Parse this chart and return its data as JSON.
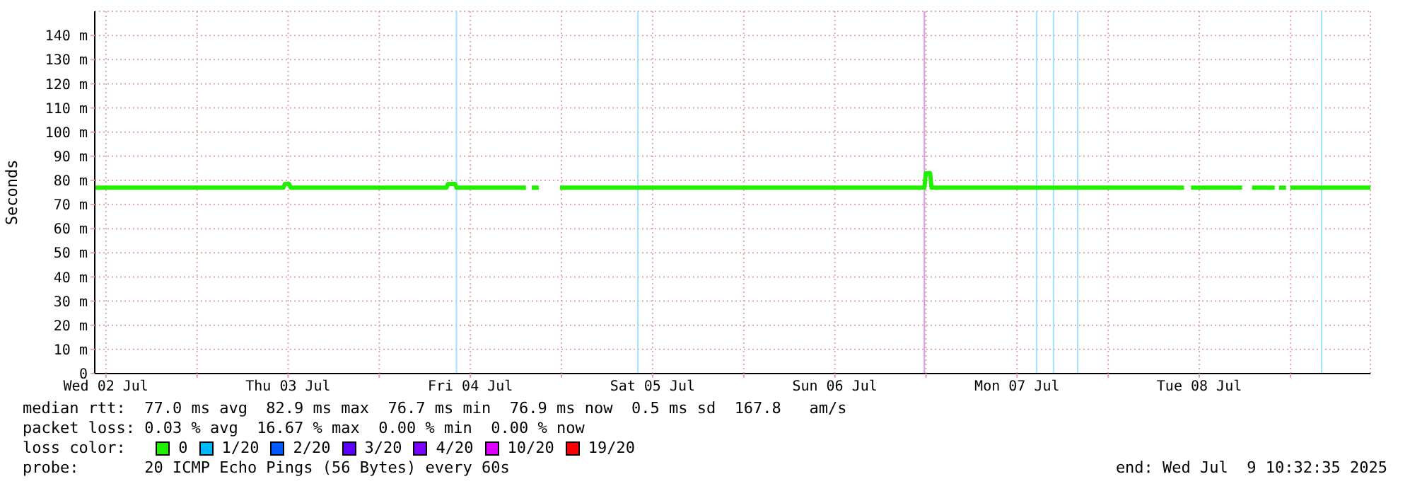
{
  "chart_data": {
    "type": "line",
    "ylabel": "Seconds",
    "legend_title": "loss color:",
    "legend": "bottom left",
    "grid": true,
    "marker": "none",
    "line_style": "solid",
    "xlim": [
      "2025-07-02T10:32",
      "2025-07-09T10:32"
    ],
    "xticks": [
      {
        "value": "2025-07-02T12:00",
        "label": "Wed 02 Jul"
      },
      {
        "value": "2025-07-03",
        "label": null
      },
      {
        "value": "2025-07-03T12:00",
        "label": "Thu 03 Jul"
      },
      {
        "value": "2025-07-04",
        "label": null
      },
      {
        "value": "2025-07-04T12:00",
        "label": "Fri 04 Jul"
      },
      {
        "value": "2025-07-05",
        "label": null
      },
      {
        "value": "2025-07-05T12:00",
        "label": "Sat 05 Jul"
      },
      {
        "value": "2025-07-06",
        "label": null
      },
      {
        "value": "2025-07-06T12:00",
        "label": "Sun 06 Jul"
      },
      {
        "value": "2025-07-07",
        "label": null
      },
      {
        "value": "2025-07-07T12:00",
        "label": "Mon 07 Jul"
      },
      {
        "value": "2025-07-08",
        "label": null
      },
      {
        "value": "2025-07-08T12:00",
        "label": "Tue 08 Jul"
      },
      {
        "value": "2025-07-09",
        "label": null
      }
    ],
    "ylim": [
      0,
      150
    ],
    "yticks": [
      0,
      {
        "value": 10,
        "label": "10 m"
      },
      {
        "value": 20,
        "label": "20 m"
      },
      {
        "value": 30,
        "label": "30 m"
      },
      {
        "value": 40,
        "label": "40 m"
      },
      {
        "value": 50,
        "label": "50 m"
      },
      {
        "value": 60,
        "label": "60 m"
      },
      {
        "value": 70,
        "label": "70 m"
      },
      {
        "value": 80,
        "label": "80 m"
      },
      {
        "value": 90,
        "label": "90 m"
      },
      {
        "value": 100,
        "label": "100 m"
      },
      {
        "value": 110,
        "label": "110 m"
      },
      {
        "value": 120,
        "label": "120 m"
      },
      {
        "value": 130,
        "label": "130 m"
      },
      {
        "value": 140,
        "label": "140 m"
      }
    ],
    "x": [
      "2025-07-02T10:32",
      "2025-07-03T11:23",
      "2025-07-03T11:34",
      "2025-07-03T12:08",
      "2025-07-03T12:19",
      "2025-07-04T08:52",
      "2025-07-04T09:03",
      "2025-07-04T09:59",
      "2025-07-04T10:10",
      "2025-07-04T19:19",
      "2025-07-04T19:45",
      "2025-07-04T20:05",
      "2025-07-04T21:00",
      "2025-07-04T21:20",
      "2025-07-04T23:48",
      "2025-07-06T23:48",
      "2025-07-06T23:59",
      "2025-07-07T00:33",
      "2025-07-07T00:44",
      "2025-07-08T09:59",
      "2025-07-08T10:24",
      "2025-07-08T10:55",
      "2025-07-08T17:38",
      "2025-07-08T18:18",
      "2025-07-08T18:57",
      "2025-07-08T21:56",
      "2025-07-08T22:10",
      "2025-07-08T22:30",
      "2025-07-08T23:25",
      "2025-07-08T23:42",
      "2025-07-08T23:59",
      "2025-07-09T10:32"
    ],
    "series": [
      {
        "name": "0",
        "color": "#22ee00",
        "values": [
          77,
          77,
          78.5,
          78.5,
          77,
          77,
          78.5,
          78.5,
          77,
          77,
          null,
          77,
          77,
          null,
          77,
          77,
          83,
          83,
          77,
          77,
          null,
          77,
          77,
          null,
          77,
          77,
          null,
          77,
          77,
          null,
          77,
          77
        ]
      },
      {
        "name": "1/20",
        "color": "#00b8ff",
        "values": [
          null,
          null,
          null,
          null,
          null,
          null,
          null,
          null,
          null,
          null,
          null,
          null,
          null,
          null,
          null,
          null,
          null,
          null,
          null,
          null,
          null,
          null,
          null,
          null,
          null,
          null,
          null,
          null,
          null,
          null,
          null,
          null
        ]
      },
      {
        "name": "2/20",
        "color": "#0059ff",
        "values": [
          null,
          null,
          null,
          null,
          null,
          null,
          null,
          null,
          null,
          null,
          null,
          null,
          null,
          null,
          null,
          null,
          null,
          null,
          null,
          null,
          null,
          null,
          null,
          null,
          null,
          null,
          null,
          null,
          null,
          null,
          null,
          null
        ]
      },
      {
        "name": "3/20",
        "color": "#5e00ff",
        "values": [
          null,
          null,
          null,
          null,
          null,
          null,
          null,
          null,
          null,
          null,
          null,
          null,
          null,
          null,
          null,
          null,
          null,
          null,
          null,
          null,
          null,
          null,
          null,
          null,
          null,
          null,
          null,
          null,
          null,
          null,
          null,
          null
        ]
      },
      {
        "name": "4/20",
        "color": "#7e00ff",
        "values": [
          null,
          null,
          null,
          null,
          null,
          null,
          null,
          null,
          null,
          null,
          null,
          null,
          null,
          null,
          null,
          null,
          null,
          null,
          null,
          null,
          null,
          null,
          null,
          null,
          null,
          null,
          null,
          null,
          null,
          null,
          null,
          null
        ]
      },
      {
        "name": "10/20",
        "color": "#dd00ff",
        "values": [
          null,
          null,
          null,
          null,
          null,
          null,
          null,
          null,
          null,
          null,
          null,
          null,
          null,
          null,
          null,
          null,
          null,
          null,
          null,
          null,
          null,
          null,
          null,
          null,
          null,
          null,
          null,
          null,
          null,
          null,
          null,
          null
        ]
      },
      {
        "name": "19/20",
        "color": "#ff0000",
        "values": [
          null,
          null,
          null,
          null,
          null,
          null,
          null,
          null,
          null,
          null,
          null,
          null,
          null,
          null,
          null,
          null,
          null,
          null,
          null,
          null,
          null,
          null,
          null,
          null,
          null,
          null,
          null,
          null,
          null,
          null,
          null,
          null
        ]
      }
    ],
    "ref_lines": [
      {
        "axis": "x",
        "value": "2025-07-04T10:10",
        "color": "#9fe3ff"
      },
      {
        "axis": "x",
        "value": "2025-07-05T10:04",
        "color": "#9fe3ff"
      },
      {
        "axis": "x",
        "value": "2025-07-06T23:48",
        "color": "#d49ae8"
      },
      {
        "axis": "x",
        "value": "2025-07-07T14:34",
        "color": "#9fe3ff"
      },
      {
        "axis": "x",
        "value": "2025-07-07T16:48",
        "color": "#9fe3ff"
      },
      {
        "axis": "x",
        "value": "2025-07-07T19:59",
        "color": "#9fe3ff"
      },
      {
        "axis": "x",
        "value": "2025-07-09T04:06",
        "color": "#9fe3ff"
      }
    ],
    "annotations": [
      "median rtt:  77.0 ms avg  82.9 ms max  76.7 ms min  76.9 ms now  0.5 ms sd  167.8   am/s",
      "packet loss: 0.03 % avg  16.67 % max  0.00 % min  0.00 % now",
      "probe:       20 ICMP Echo Pings (56 Bytes) every 60s",
      "end: Wed Jul  9 10:32:35 2025"
    ]
  }
}
